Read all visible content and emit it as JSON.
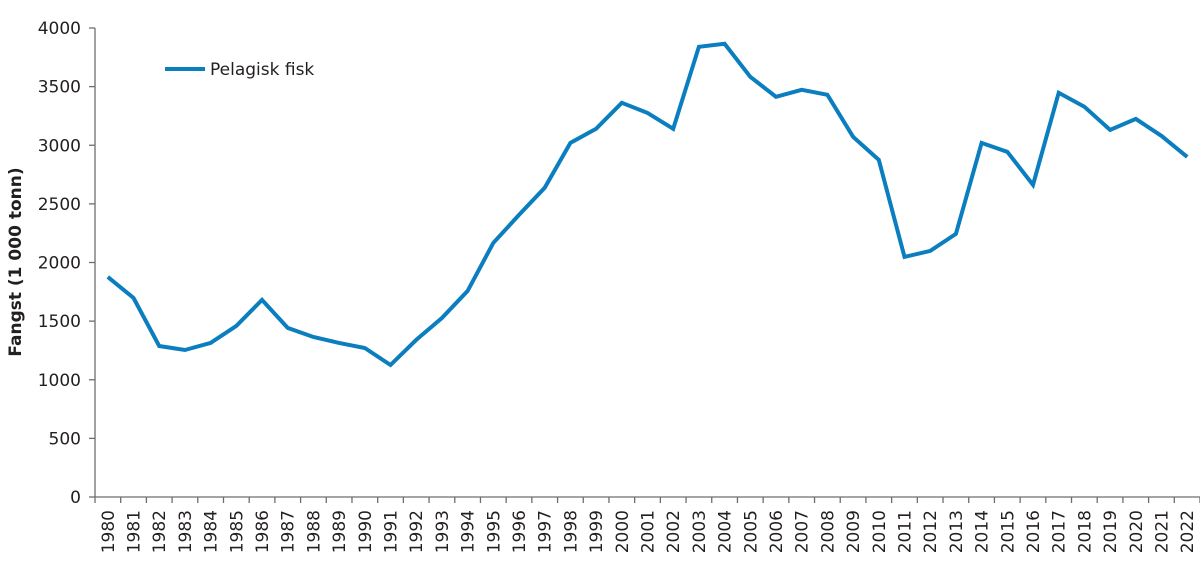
{
  "chart_data": {
    "type": "line",
    "title": "",
    "xlabel": "",
    "ylabel": "Fangst (1 000 tonn)",
    "ylim": [
      0,
      4000
    ],
    "yticks": [
      0,
      500,
      1000,
      1500,
      2000,
      2500,
      3000,
      3500,
      4000
    ],
    "grid": false,
    "legend_position": "upper-left",
    "categories": [
      "1980",
      "1981",
      "1982",
      "1983",
      "1984",
      "1985",
      "1986",
      "1987",
      "1988",
      "1989",
      "1990",
      "1991",
      "1992",
      "1993",
      "1994",
      "1995",
      "1996",
      "1997",
      "1998",
      "1999",
      "2000",
      "2001",
      "2002",
      "2003",
      "2004",
      "2005",
      "2006",
      "2007",
      "2008",
      "2009",
      "2010",
      "2011",
      "2012",
      "2013",
      "2014",
      "2015",
      "2016",
      "2017",
      "2018",
      "2019",
      "2020",
      "2021",
      "2022"
    ],
    "series": [
      {
        "name": "Pelagisk fisk",
        "color": "#0a7ebf",
        "values": [
          1877,
          1698,
          1288,
          1254,
          1314,
          1459,
          1681,
          1442,
          1365,
          1314,
          1271,
          1126,
          1340,
          1527,
          1758,
          2167,
          2406,
          2637,
          3020,
          3140,
          3362,
          3276,
          3140,
          3840,
          3865,
          3584,
          3413,
          3473,
          3430,
          3072,
          2875,
          2048,
          2099,
          2244,
          3020,
          2944,
          2662,
          3447,
          3328,
          3131,
          3225,
          3080,
          2901
        ]
      }
    ]
  },
  "legend": {
    "label": "Pelagisk fisk"
  },
  "axis": {
    "ylabel": "Fangst (1 000 tonn)"
  }
}
